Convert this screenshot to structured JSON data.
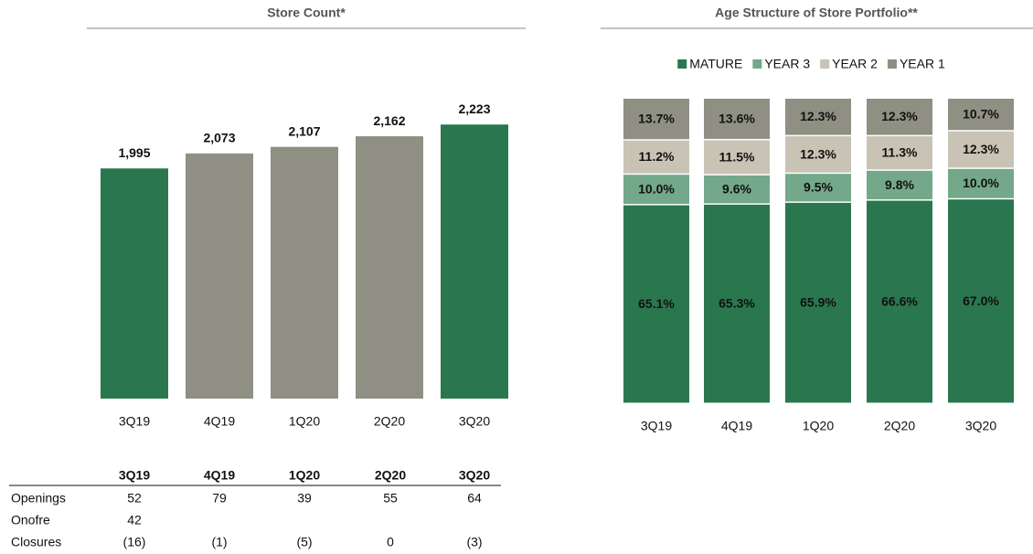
{
  "chart_data": [
    {
      "type": "bar",
      "title": "Store Count*",
      "categories": [
        "3Q19",
        "4Q19",
        "1Q20",
        "2Q20",
        "3Q20"
      ],
      "values": [
        1995,
        2073,
        2107,
        2162,
        2223
      ],
      "value_labels": [
        "1,995",
        "2,073",
        "2,107",
        "2,162",
        "2,223"
      ],
      "colors": [
        "#2a774f",
        "#8f8f84",
        "#8f8f84",
        "#8f8f84",
        "#2a774f"
      ],
      "ylim": [
        800,
        2300
      ]
    },
    {
      "type": "stacked_bar",
      "title": "Age Structure of Store Portfolio**",
      "categories": [
        "3Q19",
        "4Q19",
        "1Q20",
        "2Q20",
        "3Q20"
      ],
      "series": [
        {
          "name": "MATURE",
          "color": "#2a774f",
          "values": [
            65.1,
            65.3,
            65.9,
            66.6,
            67.0
          ],
          "value_labels": [
            "65.1%",
            "65.3%",
            "65.9%",
            "66.6%",
            "67.0%"
          ]
        },
        {
          "name": "YEAR 3",
          "color": "#73a88a",
          "values": [
            10.0,
            9.6,
            9.5,
            9.8,
            10.0
          ],
          "value_labels": [
            "10.0%",
            "9.6%",
            "9.5%",
            "9.8%",
            "10.0%"
          ]
        },
        {
          "name": "YEAR 2",
          "color": "#c9c3b6",
          "values": [
            11.2,
            11.5,
            12.3,
            11.3,
            12.3
          ],
          "value_labels": [
            "11.2%",
            "11.5%",
            "12.3%",
            "11.3%",
            "12.3%"
          ]
        },
        {
          "name": "YEAR 1",
          "color": "#8f8f84",
          "values": [
            13.7,
            13.6,
            12.3,
            12.3,
            10.7
          ],
          "value_labels": [
            "13.7%",
            "13.6%",
            "12.3%",
            "12.3%",
            "10.7%"
          ]
        }
      ],
      "ylim": [
        0,
        100
      ],
      "legend": "top"
    }
  ],
  "table": {
    "columns": [
      "3Q19",
      "4Q19",
      "1Q20",
      "2Q20",
      "3Q20"
    ],
    "rows": [
      {
        "label": "Openings",
        "cells": [
          "52",
          "79",
          "39",
          "55",
          "64"
        ]
      },
      {
        "label": "Onofre",
        "cells": [
          "42"
        ]
      },
      {
        "label": "Closures",
        "cells": [
          "(16)",
          "(1)",
          "(5)",
          "0",
          "(3)"
        ]
      }
    ]
  }
}
